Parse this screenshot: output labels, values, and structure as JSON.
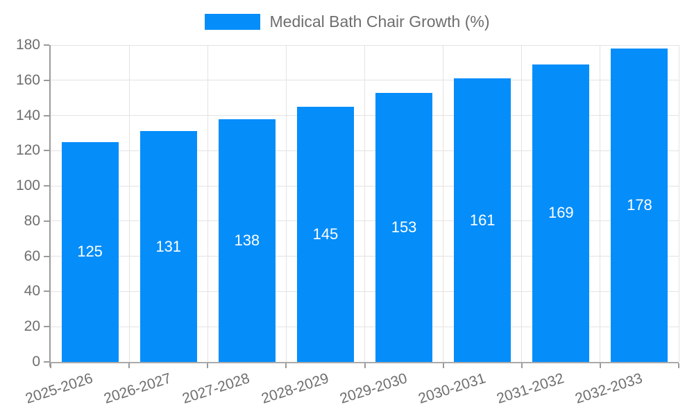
{
  "legend": {
    "label": "Medical Bath Chair Growth (%)",
    "swatch_color": "#058DFA"
  },
  "chart_data": {
    "type": "bar",
    "title": "Medical Bath Chair Growth (%)",
    "categories": [
      "2025-2026",
      "2026-2027",
      "2027-2028",
      "2028-2029",
      "2029-2030",
      "2030-2031",
      "2031-2032",
      "2032-2033"
    ],
    "values": [
      125,
      131,
      138,
      145,
      153,
      161,
      169,
      178
    ],
    "value_labels": [
      "125",
      "131",
      "138",
      "145",
      "153",
      "161",
      "169",
      "178"
    ],
    "xlabel": "",
    "ylabel": "",
    "ylim": [
      0,
      180
    ],
    "ytick_step": 20,
    "ytick_labels": [
      "0",
      "20",
      "40",
      "60",
      "80",
      "100",
      "120",
      "140",
      "160",
      "180"
    ],
    "grid": true,
    "legend_position": "top-center",
    "bar_color": "#058DFA",
    "value_label_color": "#ffffff",
    "axis_text_color": "#6e6e6e",
    "gridline_color": "#e3e3e3",
    "axis_line_color": "#9a9a9a"
  }
}
